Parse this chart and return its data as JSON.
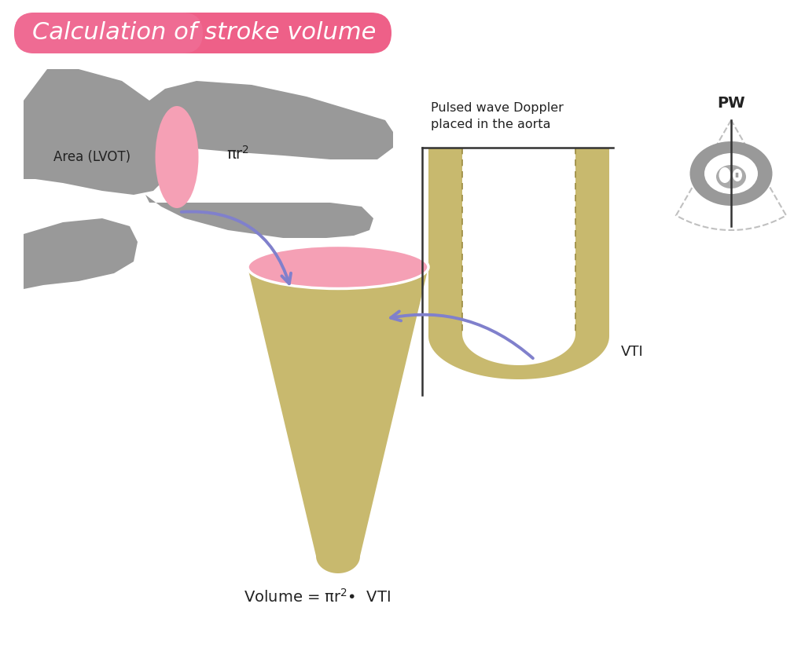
{
  "title": "Calculation of stroke volume",
  "title_text_color": "#ffffff",
  "background_color": "#ffffff",
  "gray_color": "#999999",
  "gray_dark": "#888888",
  "pink_color": "#f5a0b5",
  "pink_light": "#f8bfcc",
  "tan_color": "#c8b96e",
  "tan_dark": "#b5a550",
  "purple_color": "#8080cc",
  "text_color": "#222222",
  "area_label": "Area (LVOT)",
  "pulsed_wave_label": "Pulsed wave Doppler\nplaced in the aorta",
  "vti_label": "VTI",
  "pw_label": "PW",
  "volume_formula_1": "Volume = πr",
  "volume_formula_2": "2",
  "volume_formula_3": "•  VTI"
}
